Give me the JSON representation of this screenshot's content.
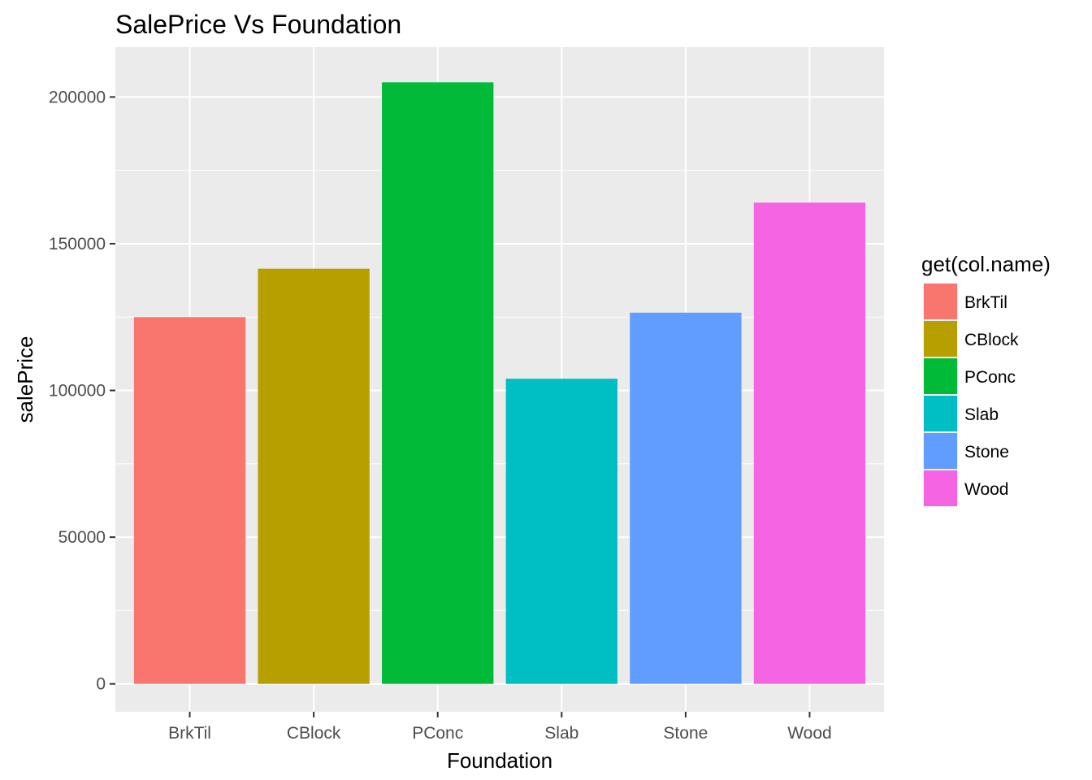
{
  "chart_data": {
    "type": "bar",
    "title": "SalePrice Vs Foundation",
    "xlabel": "Foundation",
    "ylabel": "salePrice",
    "categories": [
      "BrkTil",
      "CBlock",
      "PConc",
      "Slab",
      "Stone",
      "Wood"
    ],
    "values": [
      125000,
      141500,
      205000,
      104000,
      126500,
      164000
    ],
    "colors": [
      "#F8766D",
      "#B79F00",
      "#00BA38",
      "#00BFC4",
      "#619CFF",
      "#F564E3"
    ],
    "ylim": [
      -9500,
      217000
    ],
    "yticks": [
      0,
      50000,
      100000,
      150000,
      200000
    ],
    "ytick_labels": [
      "0",
      "50000",
      "100000",
      "150000",
      "200000"
    ],
    "grid": true,
    "legend": {
      "title": "get(col.name)",
      "position": "right",
      "entries": [
        "BrkTil",
        "CBlock",
        "PConc",
        "Slab",
        "Stone",
        "Wood"
      ]
    },
    "colors_meta": {
      "panel_background": "#EBEBEB",
      "grid_major": "#FFFFFF"
    }
  }
}
